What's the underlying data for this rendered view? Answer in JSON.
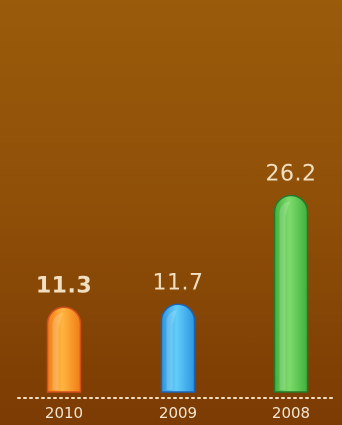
{
  "chart_data": {
    "type": "bar",
    "categories": [
      "2010",
      "2009",
      "2008"
    ],
    "values": [
      11.3,
      11.7,
      26.2
    ],
    "value_labels": [
      "11.3",
      "11.7",
      "26.2"
    ],
    "bold_value_index": 0,
    "title": "",
    "xlabel": "",
    "ylabel": "",
    "ylim": [
      0,
      30
    ],
    "grid": false,
    "legend": "none",
    "colors": {
      "background_top": "#9a5b0b",
      "background_bottom": "#7b3b03",
      "baseline": "#f1dfc2",
      "label_text": "#f1dfc2",
      "bars": [
        {
          "light": "#ffb540",
          "dark": "#f07c16",
          "edge": "#d44d1d"
        },
        {
          "light": "#62cdfa",
          "dark": "#2d96df",
          "edge": "#1c63b8"
        },
        {
          "light": "#7edb6c",
          "dark": "#3fb03b",
          "edge": "#237a2b"
        }
      ]
    }
  }
}
